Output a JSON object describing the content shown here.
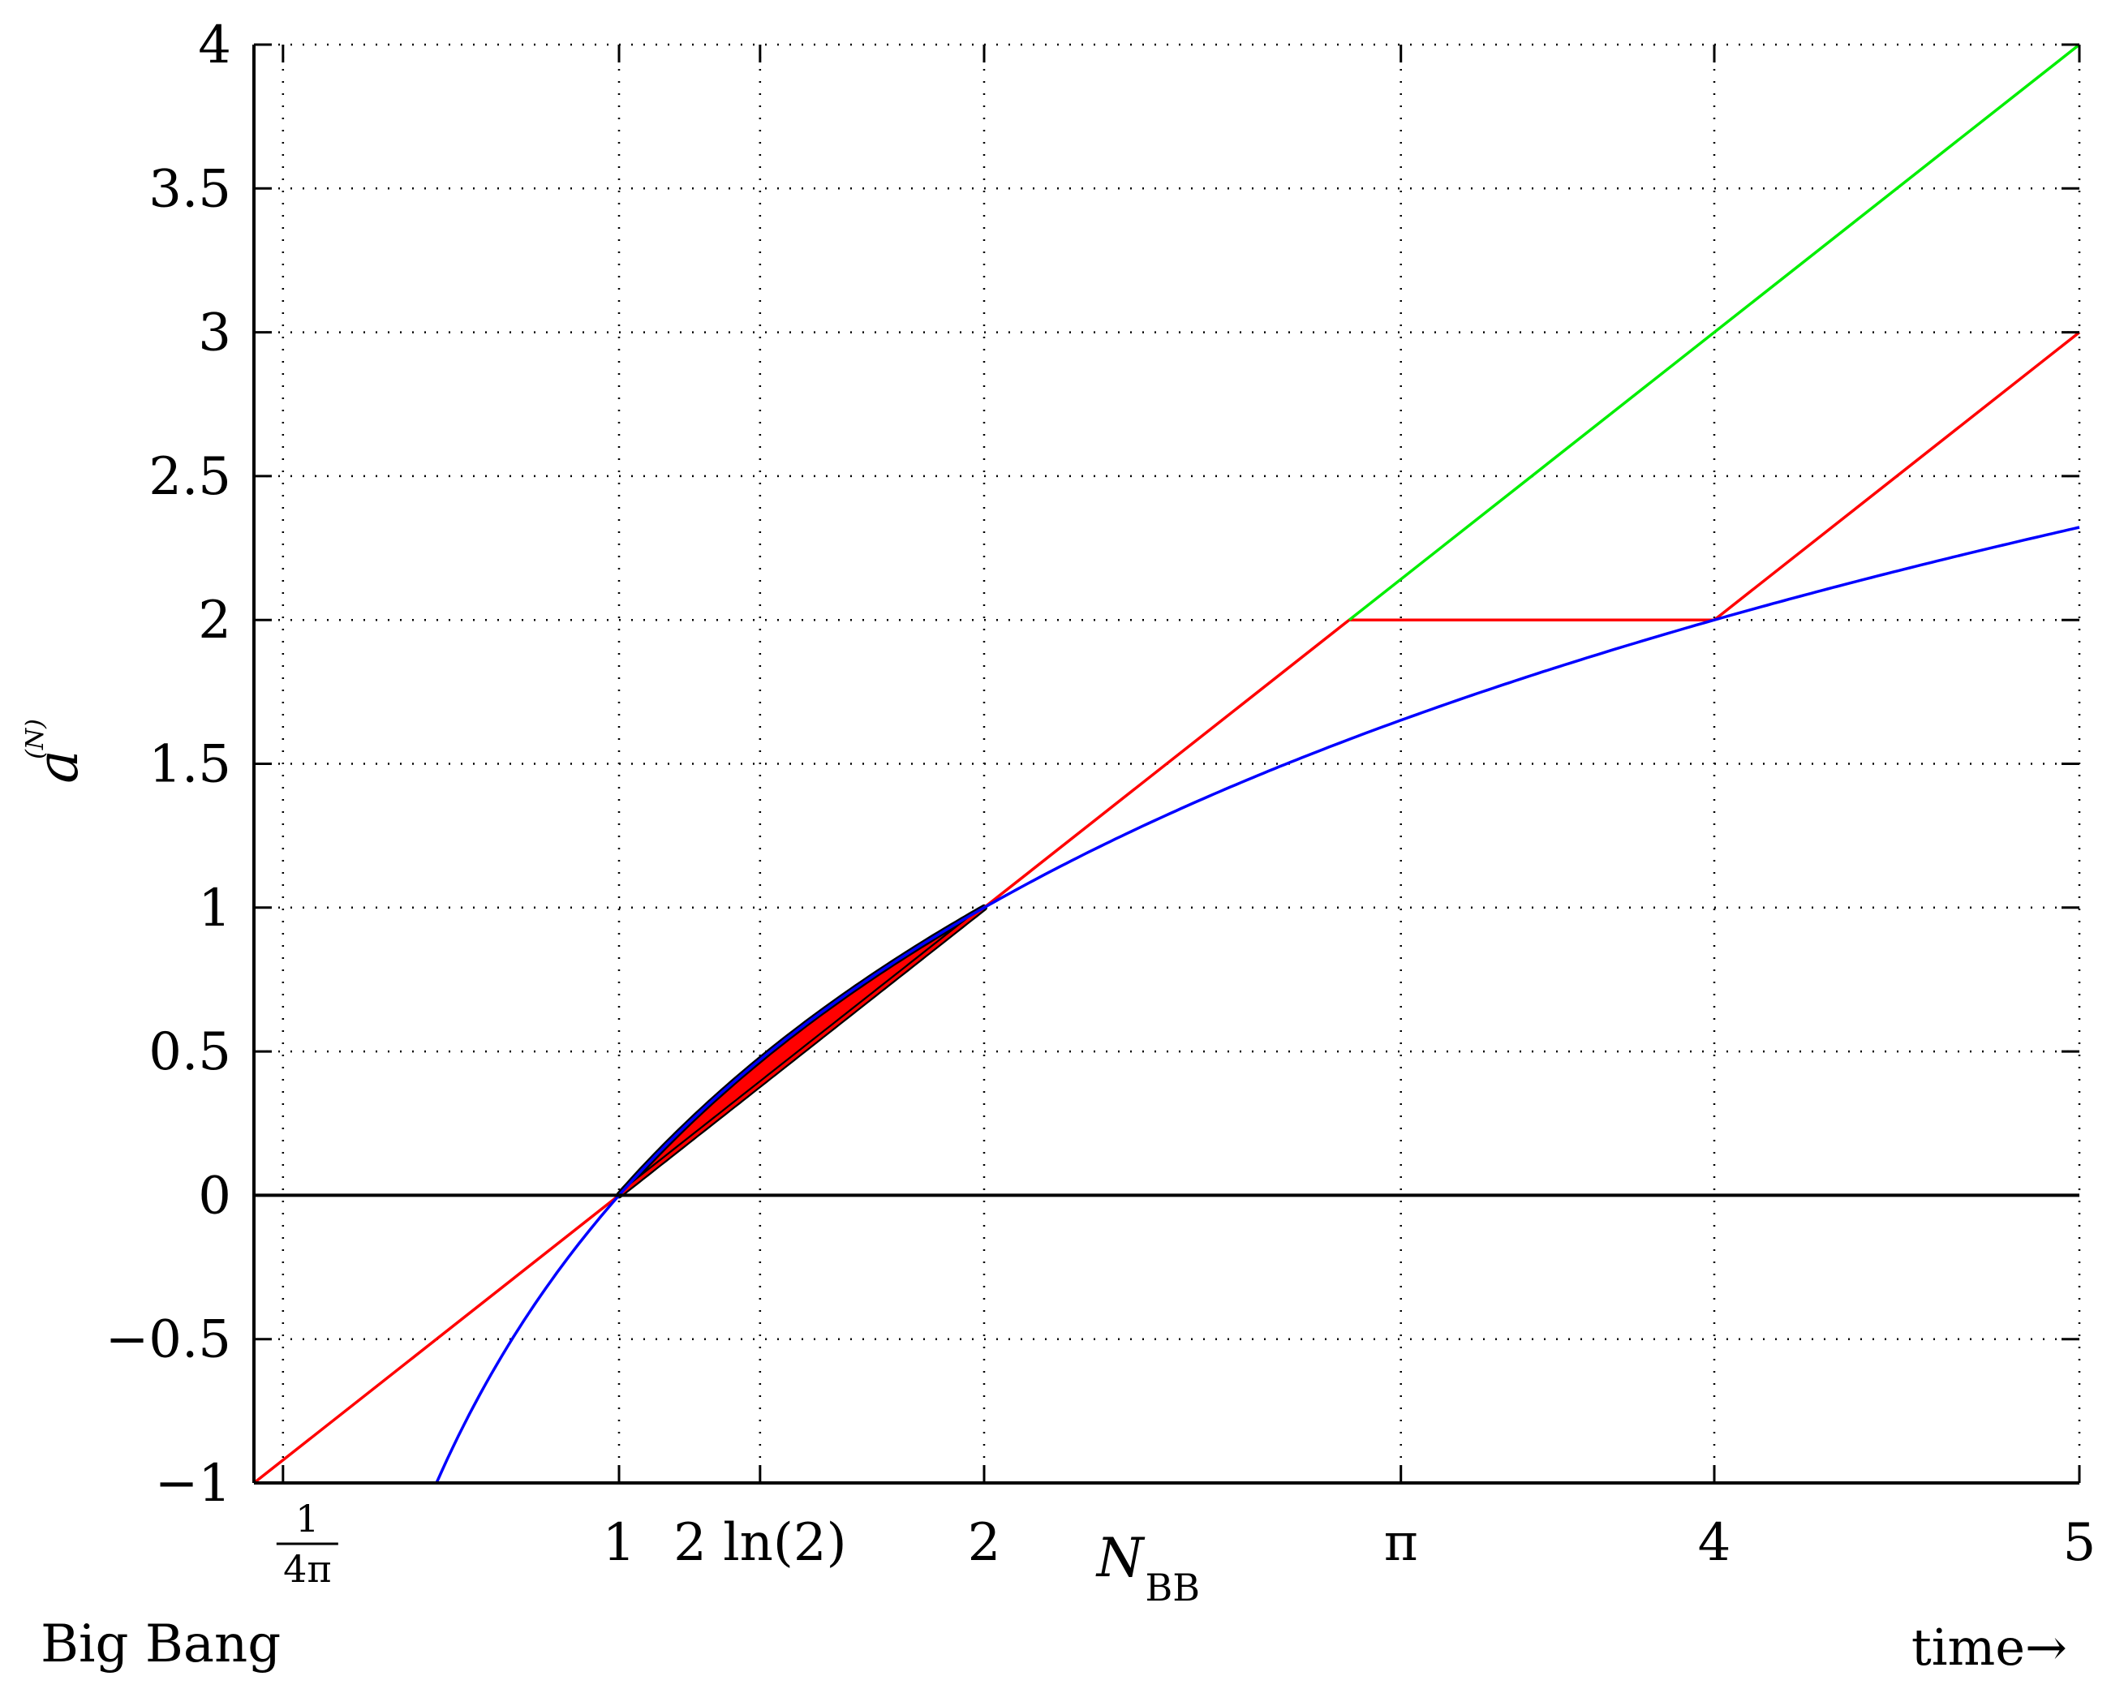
{
  "chart_data": {
    "type": "line",
    "xlim": [
      0,
      5
    ],
    "ylim": [
      -1,
      4
    ],
    "grid": true,
    "grid_style": "dotted",
    "x_ticks": [
      {
        "value": 0.0796,
        "label": ""
      },
      {
        "value": 1,
        "label": "1"
      },
      {
        "value": 1.3863,
        "label": "2 ln(2)"
      },
      {
        "value": 2,
        "label": "2"
      },
      {
        "value": 3.1416,
        "label": "π"
      },
      {
        "value": 4,
        "label": "4"
      },
      {
        "value": 5,
        "label": "5"
      }
    ],
    "x_tick_fraction": {
      "numerator": "1",
      "denominator": "4π",
      "value": 0.0796
    },
    "y_ticks": [
      {
        "value": -1,
        "label": "−1"
      },
      {
        "value": -0.5,
        "label": "−0.5"
      },
      {
        "value": 0,
        "label": "0"
      },
      {
        "value": 0.5,
        "label": "0.5"
      },
      {
        "value": 1,
        "label": "1"
      },
      {
        "value": 1.5,
        "label": "1.5"
      },
      {
        "value": 2,
        "label": "2"
      },
      {
        "value": 2.5,
        "label": "2.5"
      },
      {
        "value": 3,
        "label": "3"
      },
      {
        "value": 3.5,
        "label": "3.5"
      },
      {
        "value": 4,
        "label": "4"
      }
    ],
    "ylabel": {
      "base": "a",
      "superscript": "(N)"
    },
    "xlabel": "time→",
    "annotations": {
      "big_bang": "Big Bang",
      "nbb_main": "N",
      "nbb_sub": "BB",
      "nbb_x": 2.45
    },
    "series": [
      {
        "color": "#ff0000",
        "kind": "polyline",
        "x": [
          0,
          1,
          2,
          2.0,
          3.0,
          4,
          5
        ],
        "y": [
          -1,
          0,
          1,
          1,
          2,
          2,
          3
        ]
      },
      {
        "color": "#00ee00",
        "kind": "polyline",
        "x": [
          3.0,
          5
        ],
        "y": [
          2,
          4
        ]
      },
      {
        "color": "#0000ff",
        "kind": "function",
        "expr": "log2",
        "x_range": [
          0.5,
          5
        ]
      },
      {
        "color": "#000000",
        "kind": "polyline",
        "x": [
          0,
          5
        ],
        "y": [
          0,
          0
        ]
      }
    ],
    "shaded_region": {
      "fill": "#ff0000",
      "stroke": "#000000",
      "x_range": [
        1,
        2
      ],
      "upper": "log2",
      "lower": "linear"
    }
  }
}
